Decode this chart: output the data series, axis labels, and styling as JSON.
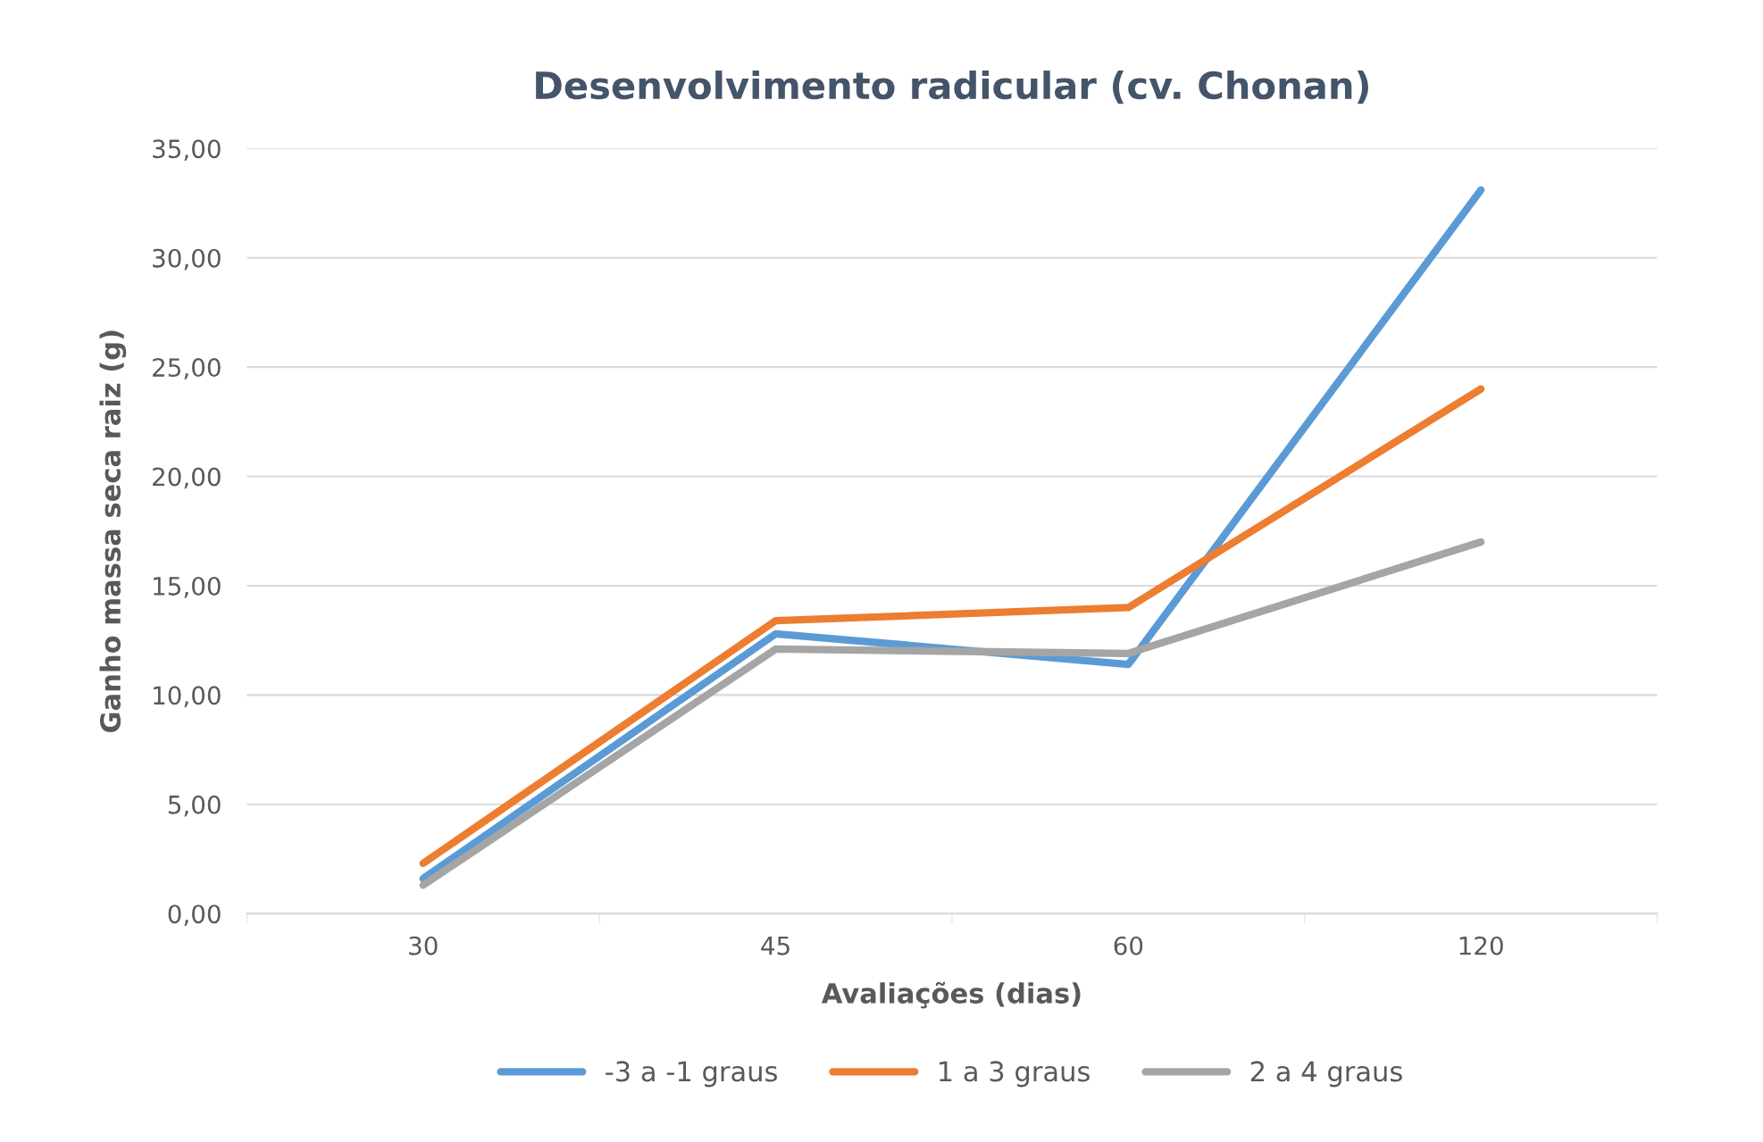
{
  "chart_data": {
    "type": "line",
    "title": "Desenvolvimento radicular (cv. Chonan)",
    "xlabel": "Avaliações (dias)",
    "ylabel": "Ganho massa seca raiz (g)",
    "categories": [
      "30",
      "45",
      "60",
      "120"
    ],
    "series": [
      {
        "name": "-3 a -1 graus",
        "color": "#5b9bd5",
        "values": [
          1.6,
          12.8,
          11.4,
          33.1
        ]
      },
      {
        "name": "1 a 3 graus",
        "color": "#ed7d31",
        "values": [
          2.3,
          13.4,
          14.0,
          24.0
        ]
      },
      {
        "name": "2 a 4 graus",
        "color": "#a5a5a5",
        "values": [
          1.3,
          12.1,
          11.9,
          17.0
        ]
      }
    ],
    "ylim": [
      0,
      35
    ],
    "yticks": [
      {
        "value": 0,
        "label": "0,00"
      },
      {
        "value": 5,
        "label": "5,00"
      },
      {
        "value": 10,
        "label": "10,00"
      },
      {
        "value": 15,
        "label": "15,00"
      },
      {
        "value": 20,
        "label": "20,00"
      },
      {
        "value": 25,
        "label": "25,00"
      },
      {
        "value": 30,
        "label": "30,00"
      },
      {
        "value": 35,
        "label": "35,00"
      }
    ],
    "grid": "y",
    "legend": "bottom",
    "marker": "none",
    "line_style": "solid"
  }
}
